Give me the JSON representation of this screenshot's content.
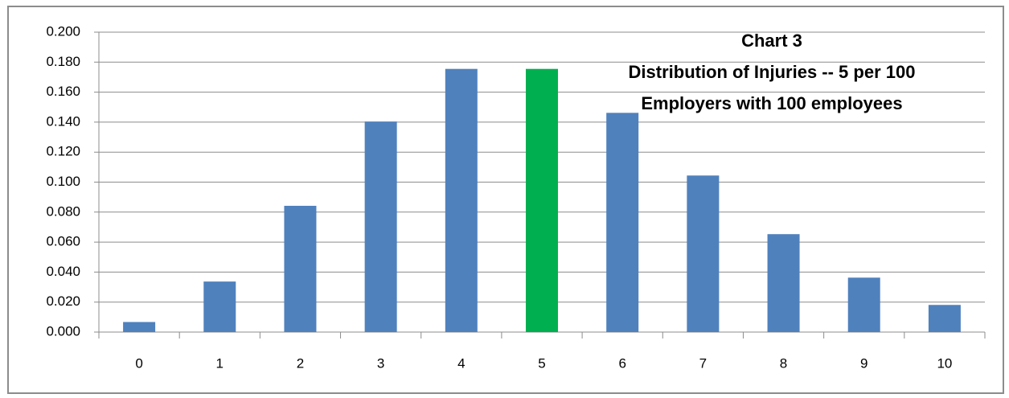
{
  "chart_data": {
    "type": "bar",
    "title": [
      "Chart 3",
      "Distribution of Injuries -- 5 per 100",
      "Employers with 100 employees"
    ],
    "categories": [
      "0",
      "1",
      "2",
      "3",
      "4",
      "5",
      "6",
      "7",
      "8",
      "9",
      "10"
    ],
    "values": [
      0.0067,
      0.0337,
      0.0842,
      0.1404,
      0.1755,
      0.1755,
      0.1462,
      0.1044,
      0.0653,
      0.0363,
      0.0181
    ],
    "colors": [
      "#4f81bd",
      "#4f81bd",
      "#4f81bd",
      "#4f81bd",
      "#4f81bd",
      "#00b050",
      "#4f81bd",
      "#4f81bd",
      "#4f81bd",
      "#4f81bd",
      "#4f81bd"
    ],
    "ylim": [
      0,
      0.2
    ],
    "yticks": [
      {
        "value": 0,
        "label": "0.000"
      },
      {
        "value": 0.02,
        "label": "0.020"
      },
      {
        "value": 0.04,
        "label": "0.040"
      },
      {
        "value": 0.06,
        "label": "0.060"
      },
      {
        "value": 0.08,
        "label": "0.080"
      },
      {
        "value": 0.1,
        "label": "0.100"
      },
      {
        "value": 0.12,
        "label": "0.120"
      },
      {
        "value": 0.14,
        "label": "0.140"
      },
      {
        "value": 0.16,
        "label": "0.160"
      },
      {
        "value": 0.18,
        "label": "0.180"
      },
      {
        "value": 0.2,
        "label": "0.200"
      }
    ],
    "grid": true
  }
}
